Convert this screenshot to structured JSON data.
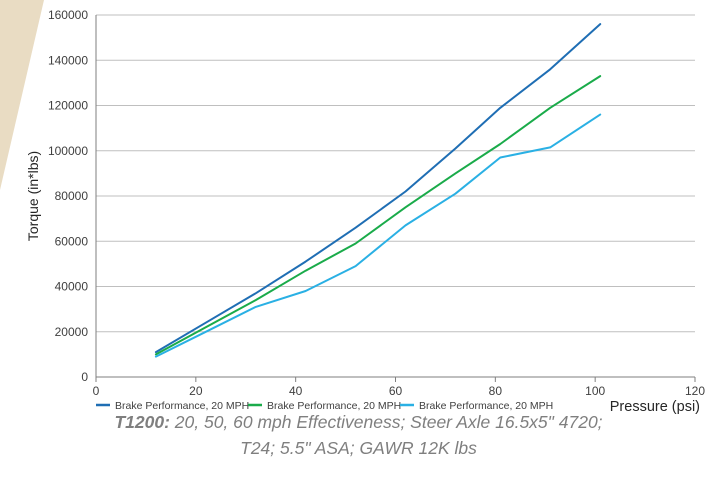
{
  "chart_data": {
    "type": "line",
    "title": "",
    "xlabel": "Pressure (psi)",
    "ylabel": "Torque (in*lbs)",
    "xlim": [
      0,
      120
    ],
    "ylim": [
      0,
      160000
    ],
    "x_ticks": [
      "0",
      "20",
      "40",
      "60",
      "80",
      "100",
      "120"
    ],
    "y_ticks": [
      "0",
      "20000",
      "40000",
      "60000",
      "80000",
      "100000",
      "120000",
      "140000",
      "160000"
    ],
    "grid": "horizontal",
    "legend_position": "bottom",
    "series": [
      {
        "name": "Brake Performance, 20 MPH",
        "color": "#1f6eb4",
        "x": [
          12,
          22,
          32,
          42,
          52,
          62,
          72,
          81,
          91,
          101
        ],
        "y": [
          11000,
          24000,
          37000,
          51000,
          66000,
          82000,
          101000,
          119000,
          136000,
          156000
        ]
      },
      {
        "name": "Brake Performance, 20 MPH",
        "color": "#1aab4a",
        "x": [
          12,
          22,
          32,
          42,
          52,
          62,
          72,
          81,
          91,
          101
        ],
        "y": [
          10000,
          22000,
          34000,
          47000,
          59000,
          75000,
          90000,
          103000,
          119000,
          133000
        ]
      },
      {
        "name": "Brake Performance, 20 MPH",
        "color": "#2ab0e4",
        "x": [
          12,
          22,
          32,
          42,
          52,
          62,
          72,
          81,
          91,
          101
        ],
        "y": [
          9000,
          20000,
          31000,
          38000,
          49000,
          67000,
          81000,
          97000,
          101500,
          116000
        ]
      }
    ]
  },
  "caption": {
    "bold": "T1200:",
    "line1": " 20, 50, 60 mph Effectiveness; Steer Axle 16.5x5\" 4720;",
    "line2": "T24; 5.5\" ASA; GAWR 12K lbs"
  },
  "colors": {
    "axis": "#7f7f7f",
    "grid": "#bfbfbf",
    "tick_text": "#404040",
    "decor_fill": "#e9dcc3"
  }
}
